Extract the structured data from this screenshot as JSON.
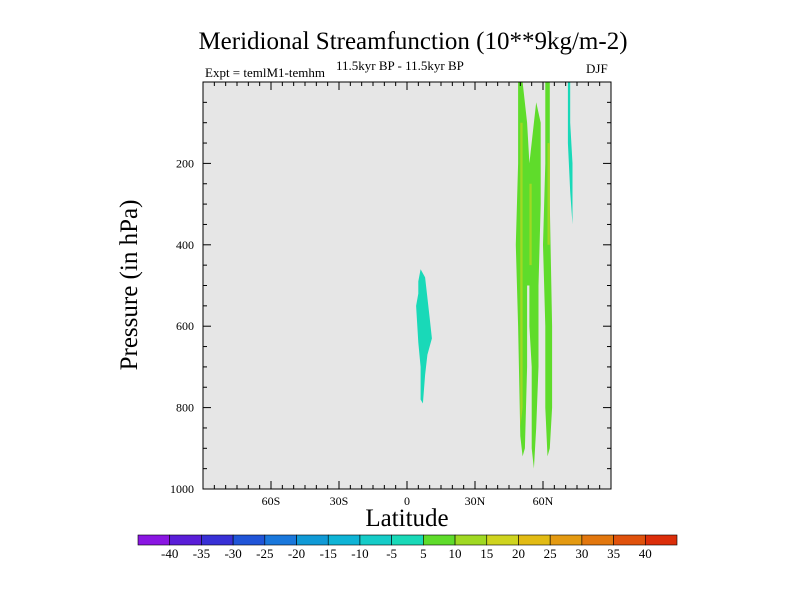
{
  "colors": {
    "background": "#e6e6e6",
    "neg_5": "#19d9b8",
    "pos_5": "#5fdc2b",
    "pos_10": "#a0d923"
  },
  "chart_data": {
    "type": "contour",
    "title": "Meridional Streamfunction (10**9kg/m-2)",
    "subtitle_left": "Expt = temlM1-temhm",
    "subtitle_center": "11.5kyr BP - 11.5kyr BP",
    "subtitle_right": "DJF",
    "xlabel": "Latitude",
    "ylabel": "Pressure (in hPa)",
    "xlim": [
      -90,
      90
    ],
    "ylim": [
      1000,
      0
    ],
    "xticks": [
      {
        "value": -60,
        "label": "60S"
      },
      {
        "value": -30,
        "label": "30S"
      },
      {
        "value": 0,
        "label": "0"
      },
      {
        "value": 30,
        "label": "30N"
      },
      {
        "value": 60,
        "label": "60N"
      }
    ],
    "yticks": [
      {
        "value": 200,
        "label": "200"
      },
      {
        "value": 400,
        "label": "400"
      },
      {
        "value": 600,
        "label": "600"
      },
      {
        "value": 800,
        "label": "800"
      },
      {
        "value": 1000,
        "label": "1000"
      }
    ],
    "colorbar": {
      "labels": [
        "-40",
        "-35",
        "-30",
        "-25",
        "-20",
        "-15",
        "-10",
        "-5",
        "5",
        "10",
        "15",
        "20",
        "25",
        "30",
        "35",
        "40"
      ],
      "colors": [
        "#8a16e2",
        "#5a1ed8",
        "#3830d6",
        "#2055d8",
        "#1a78dc",
        "#109ad6",
        "#0fb4d6",
        "#16ccc8",
        "#19d9b8",
        "#5fdc2b",
        "#a0d923",
        "#cfd41f",
        "#e2bb14",
        "#e49a11",
        "#e2770e",
        "#e0520c",
        "#dc2e0a"
      ]
    },
    "regions": [
      {
        "name": "cyan-blob-equator",
        "level": -5,
        "points": [
          [
            4,
            550
          ],
          [
            5,
            520
          ],
          [
            5,
            490
          ],
          [
            6,
            460
          ],
          [
            8,
            480
          ],
          [
            9,
            530
          ],
          [
            10,
            580
          ],
          [
            11,
            630
          ],
          [
            9,
            670
          ],
          [
            8,
            720
          ],
          [
            7,
            790
          ],
          [
            6,
            780
          ],
          [
            6,
            700
          ],
          [
            5,
            640
          ]
        ]
      },
      {
        "name": "cyan-strip-north",
        "level": -5,
        "points": [
          [
            71,
            0
          ],
          [
            72,
            0
          ],
          [
            72,
            100
          ],
          [
            73,
            200
          ],
          [
            73,
            300
          ],
          [
            73,
            350
          ],
          [
            72,
            270
          ],
          [
            71,
            150
          ]
        ]
      },
      {
        "name": "green-column-a",
        "level": 5,
        "points": [
          [
            49,
            0
          ],
          [
            51,
            0
          ],
          [
            53,
            100
          ],
          [
            54,
            200
          ],
          [
            56,
            100
          ],
          [
            57,
            50
          ],
          [
            59,
            100
          ],
          [
            59,
            300
          ],
          [
            58,
            500
          ],
          [
            58,
            700
          ],
          [
            57,
            850
          ],
          [
            56,
            950
          ],
          [
            55,
            900
          ],
          [
            55,
            700
          ],
          [
            54,
            600
          ],
          [
            54,
            500
          ],
          [
            53,
            500
          ],
          [
            53,
            700
          ],
          [
            52,
            900
          ],
          [
            51,
            920
          ],
          [
            50,
            870
          ],
          [
            49,
            600
          ],
          [
            48,
            400
          ],
          [
            49,
            200
          ]
        ]
      },
      {
        "name": "green-column-b",
        "level": 5,
        "points": [
          [
            61,
            0
          ],
          [
            63,
            0
          ],
          [
            63,
            300
          ],
          [
            64,
            600
          ],
          [
            64,
            800
          ],
          [
            63,
            900
          ],
          [
            62,
            920
          ],
          [
            61,
            800
          ],
          [
            61,
            600
          ],
          [
            60,
            400
          ],
          [
            61,
            200
          ]
        ]
      },
      {
        "name": "yellow-core-a",
        "level": 10,
        "points": [
          [
            50,
            100
          ],
          [
            51,
            100
          ],
          [
            51,
            500
          ],
          [
            51,
            800
          ],
          [
            50,
            850
          ],
          [
            50,
            500
          ]
        ]
      },
      {
        "name": "yellow-core-b",
        "level": 10,
        "points": [
          [
            54,
            250
          ],
          [
            55,
            250
          ],
          [
            55,
            450
          ],
          [
            54,
            450
          ]
        ]
      },
      {
        "name": "yellow-core-c",
        "level": 10,
        "points": [
          [
            62,
            150
          ],
          [
            63,
            150
          ],
          [
            63,
            400
          ],
          [
            62,
            400
          ]
        ]
      }
    ]
  }
}
